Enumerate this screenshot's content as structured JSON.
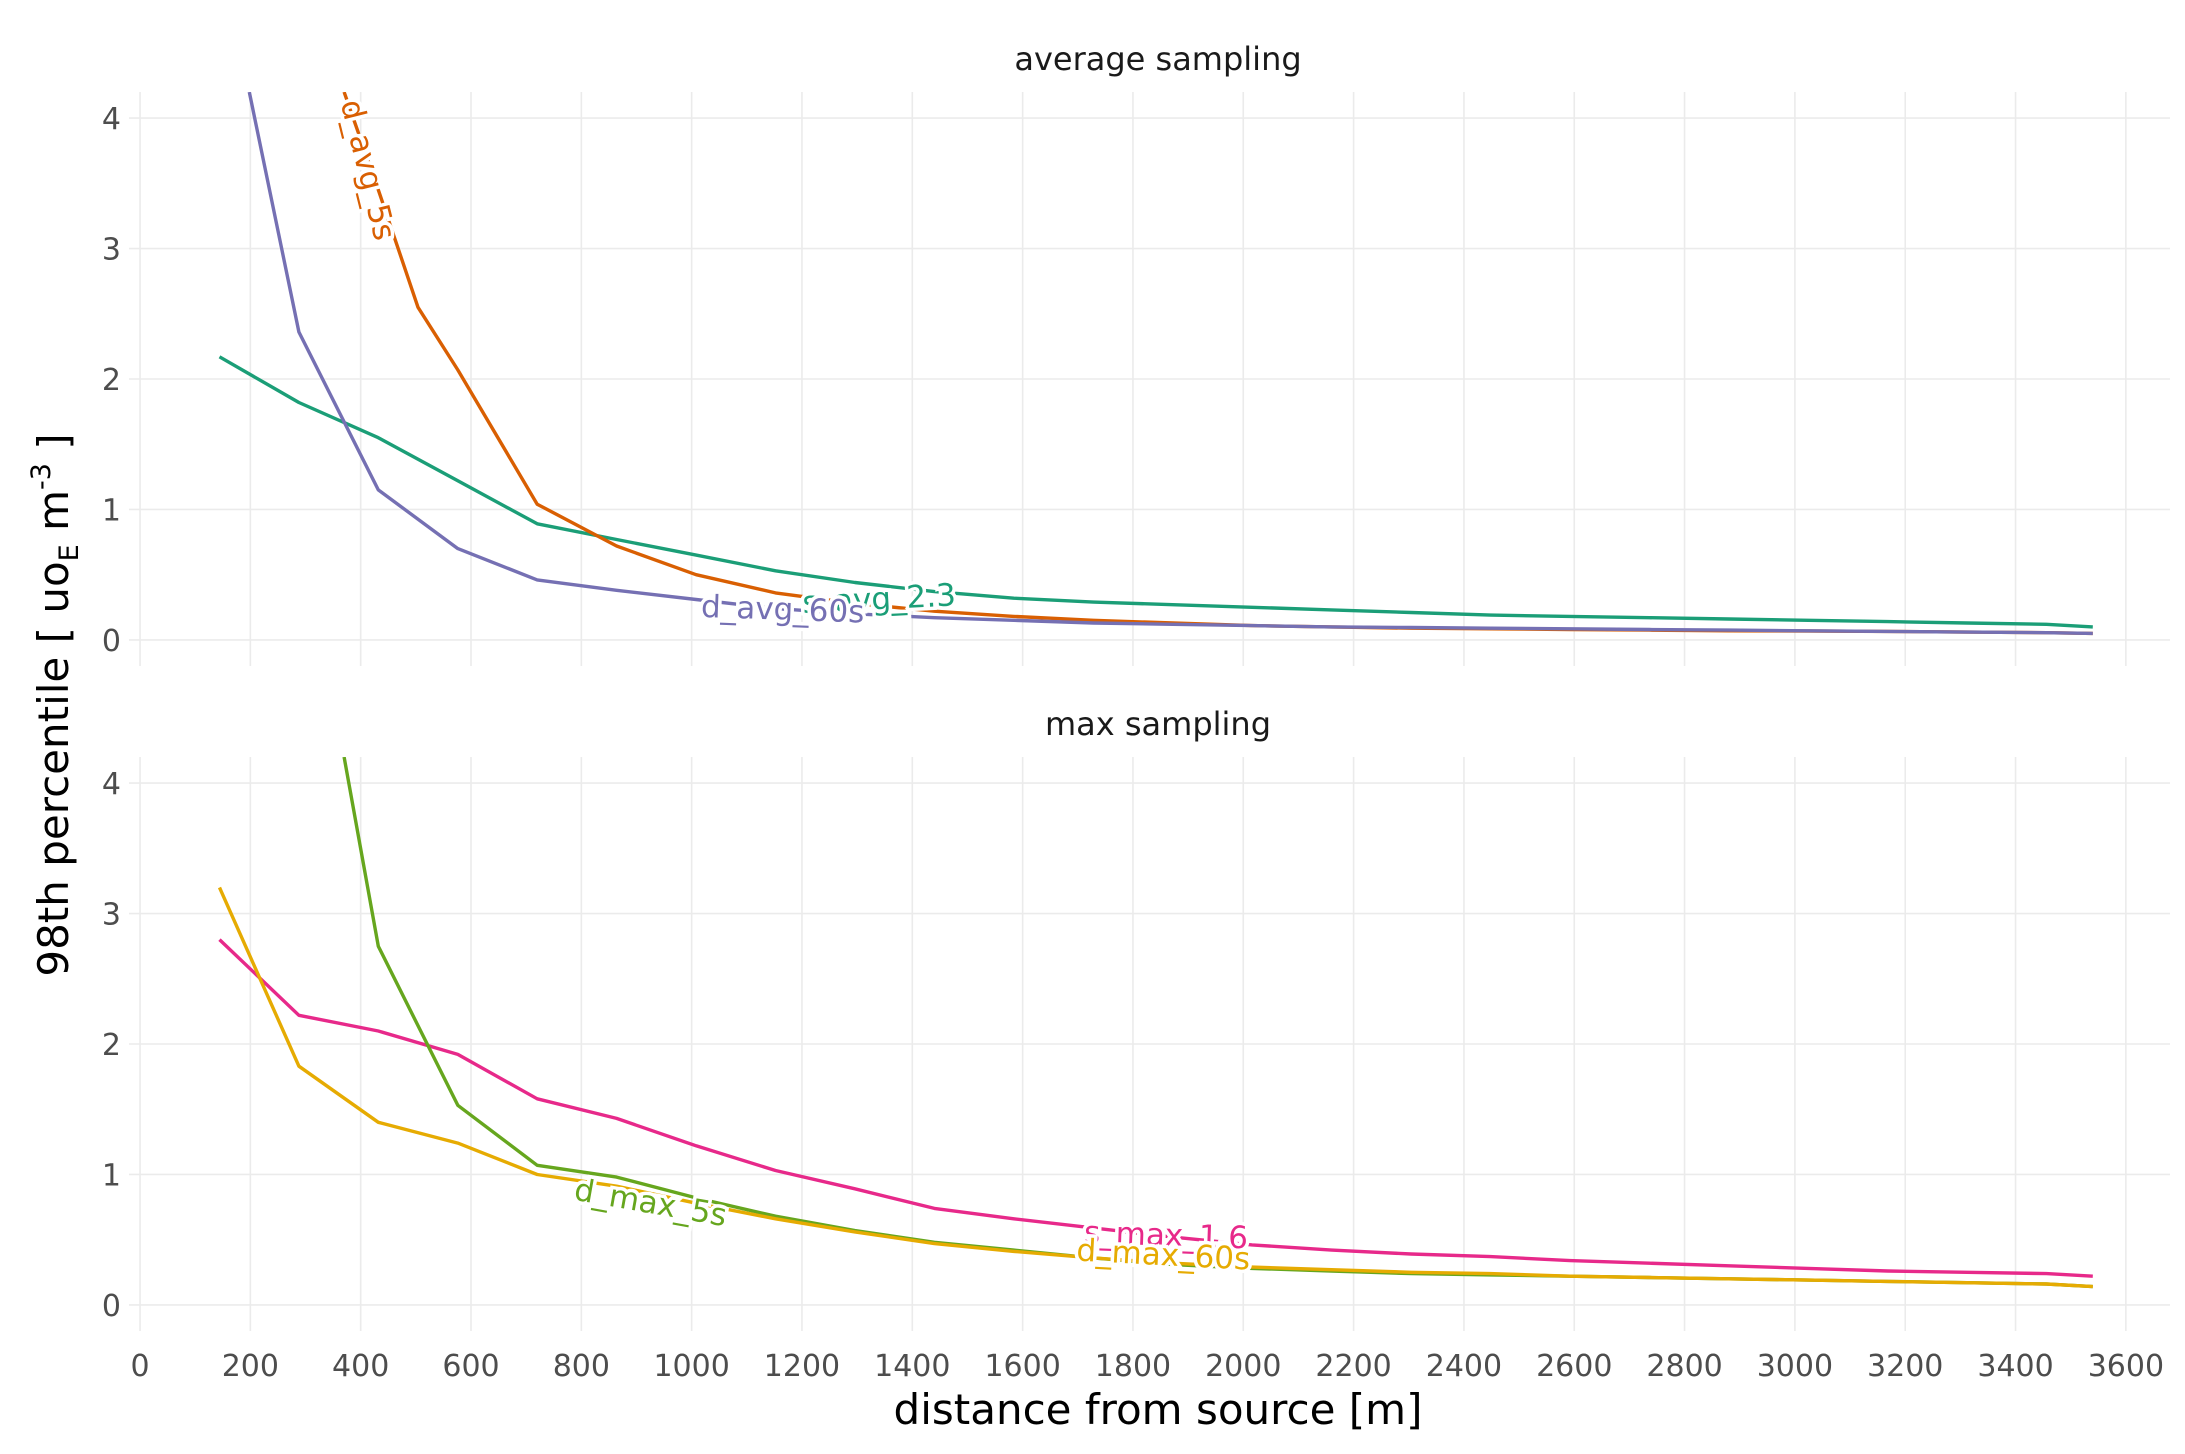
{
  "chart_data": {
    "type": "line",
    "xlabel": "distance from source [m]",
    "ylabel": {
      "main": "98th percentile [ uo",
      "sub": "E",
      "mid": " m",
      "sup": "-3",
      "end": " ]"
    },
    "xlim": [
      -20,
      3680
    ],
    "ylim": [
      -0.2,
      4.2
    ],
    "x_ticks": [
      0,
      200,
      400,
      600,
      800,
      1000,
      1200,
      1400,
      1600,
      1800,
      2000,
      2200,
      2400,
      2600,
      2800,
      3000,
      3200,
      3400,
      3600
    ],
    "y_ticks": [
      0,
      1,
      2,
      3,
      4
    ],
    "grid": true,
    "legend": "none (labels placed on lines)",
    "panels": [
      {
        "title": "average sampling",
        "series": [
          {
            "name": "s_avg_2.3",
            "color": "#1b9e77",
            "x": [
              144,
              288,
              432,
              576,
              720,
              864,
              1008,
              1152,
              1296,
              1440,
              1584,
              1728,
              1872,
              2016,
              2160,
              2304,
              2448,
              2592,
              2736,
              2880,
              3024,
              3168,
              3312,
              3456,
              3540
            ],
            "y": [
              2.17,
              1.82,
              1.55,
              1.22,
              0.89,
              0.77,
              0.65,
              0.53,
              0.44,
              0.37,
              0.32,
              0.29,
              0.27,
              0.25,
              0.23,
              0.21,
              0.19,
              0.18,
              0.17,
              0.16,
              0.15,
              0.14,
              0.13,
              0.12,
              0.1
            ]
          },
          {
            "name": "d_avg_5s",
            "color": "#d95f02",
            "x": [
              370,
              432,
              504,
              576,
              720,
              864,
              1008,
              1152,
              1296,
              1440,
              1584,
              1728,
              1872,
              2016,
              2160,
              2304,
              2448,
              2592,
              2736,
              2880,
              3024,
              3168,
              3312,
              3456,
              3540
            ],
            "y": [
              4.2,
              3.45,
              2.55,
              2.07,
              1.04,
              0.72,
              0.5,
              0.36,
              0.28,
              0.22,
              0.18,
              0.15,
              0.13,
              0.11,
              0.1,
              0.09,
              0.085,
              0.08,
              0.075,
              0.07,
              0.068,
              0.065,
              0.06,
              0.055,
              0.05
            ]
          },
          {
            "name": "d_avg_60s",
            "color": "#7570b3",
            "x": [
              198,
              288,
              432,
              576,
              720,
              864,
              1008,
              1152,
              1296,
              1440,
              1584,
              1728,
              1872,
              2016,
              2160,
              2304,
              2448,
              2592,
              2736,
              2880,
              3024,
              3168,
              3312,
              3456,
              3540
            ],
            "y": [
              4.2,
              2.36,
              1.15,
              0.7,
              0.46,
              0.38,
              0.31,
              0.24,
              0.2,
              0.17,
              0.15,
              0.13,
              0.12,
              0.11,
              0.1,
              0.095,
              0.09,
              0.085,
              0.08,
              0.075,
              0.07,
              0.065,
              0.06,
              0.055,
              0.05
            ]
          }
        ]
      },
      {
        "title": "max sampling",
        "series": [
          {
            "name": "s_max_1.6",
            "color": "#e7298a",
            "x": [
              144,
              288,
              432,
              576,
              720,
              864,
              1008,
              1152,
              1296,
              1440,
              1584,
              1728,
              1872,
              2016,
              2160,
              2304,
              2448,
              2592,
              2736,
              2880,
              3024,
              3168,
              3312,
              3456,
              3540
            ],
            "y": [
              2.8,
              2.22,
              2.1,
              1.92,
              1.58,
              1.43,
              1.22,
              1.03,
              0.89,
              0.74,
              0.66,
              0.59,
              0.52,
              0.46,
              0.42,
              0.39,
              0.37,
              0.34,
              0.32,
              0.3,
              0.28,
              0.26,
              0.25,
              0.24,
              0.22
            ]
          },
          {
            "name": "d_max_5s",
            "color": "#66a61e",
            "x": [
              370,
              432,
              576,
              720,
              864,
              1008,
              1152,
              1296,
              1440,
              1584,
              1728,
              1872,
              2016,
              2160,
              2304,
              2448,
              2592,
              2736,
              2880,
              3024,
              3168,
              3312,
              3456,
              3540
            ],
            "y": [
              4.2,
              2.75,
              1.53,
              1.07,
              0.98,
              0.82,
              0.68,
              0.57,
              0.48,
              0.42,
              0.36,
              0.31,
              0.28,
              0.26,
              0.24,
              0.23,
              0.22,
              0.21,
              0.2,
              0.19,
              0.18,
              0.17,
              0.16,
              0.14
            ]
          },
          {
            "name": "d_max_60s",
            "color": "#e6ab02",
            "x": [
              144,
              288,
              432,
              576,
              720,
              864,
              1008,
              1152,
              1296,
              1440,
              1584,
              1728,
              1872,
              2016,
              2160,
              2304,
              2448,
              2592,
              2736,
              2880,
              3024,
              3168,
              3312,
              3456,
              3540
            ],
            "y": [
              3.2,
              1.83,
              1.4,
              1.24,
              1.0,
              0.91,
              0.78,
              0.66,
              0.56,
              0.47,
              0.41,
              0.36,
              0.32,
              0.29,
              0.27,
              0.25,
              0.24,
              0.22,
              0.21,
              0.2,
              0.19,
              0.18,
              0.17,
              0.16,
              0.14
            ]
          }
        ]
      }
    ]
  }
}
